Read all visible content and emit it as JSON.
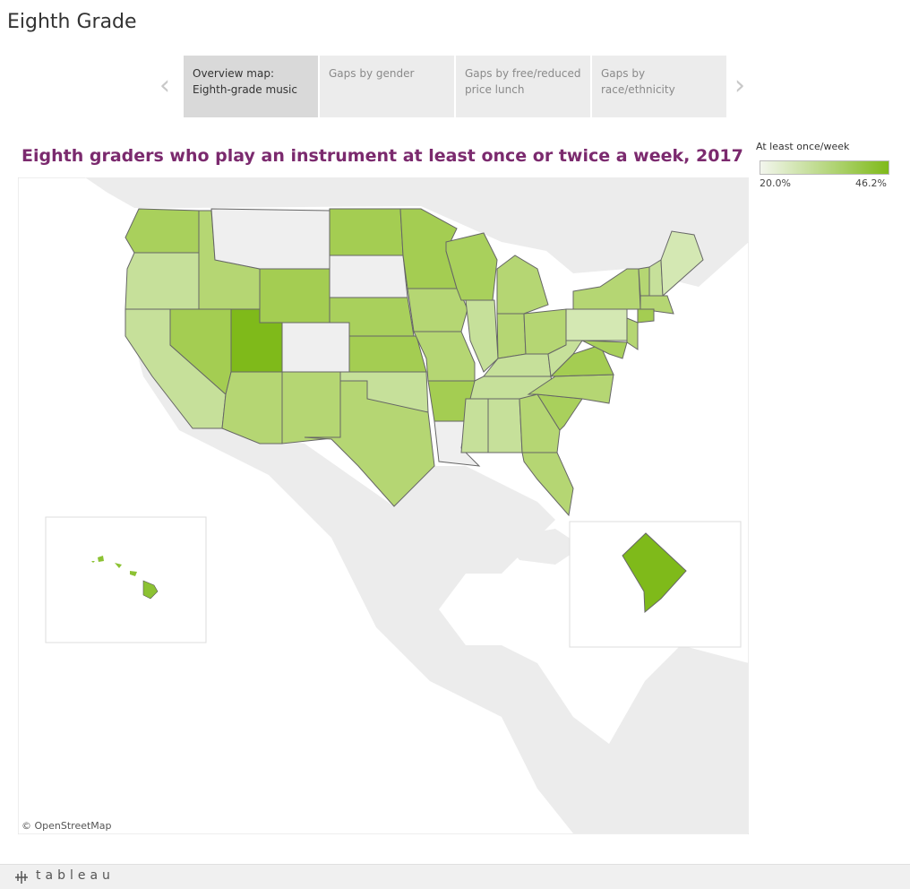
{
  "header": {
    "title": "Eighth Grade"
  },
  "tabs": [
    {
      "label": "Overview map: Eighth-grade music",
      "active": true
    },
    {
      "label": "Gaps by gender",
      "active": false
    },
    {
      "label": "Gaps by free/reduced price lunch",
      "active": false
    },
    {
      "label": "Gaps by race/ethnicity",
      "active": false
    }
  ],
  "map": {
    "title": "Eighth graders who play an instrument at least once or twice a week, 2017",
    "attribution": "© OpenStreetMap"
  },
  "legend": {
    "title": "At least once/week",
    "min_label": "20.0%",
    "max_label": "46.2%"
  },
  "footer": {
    "logo": "tableau"
  }
}
